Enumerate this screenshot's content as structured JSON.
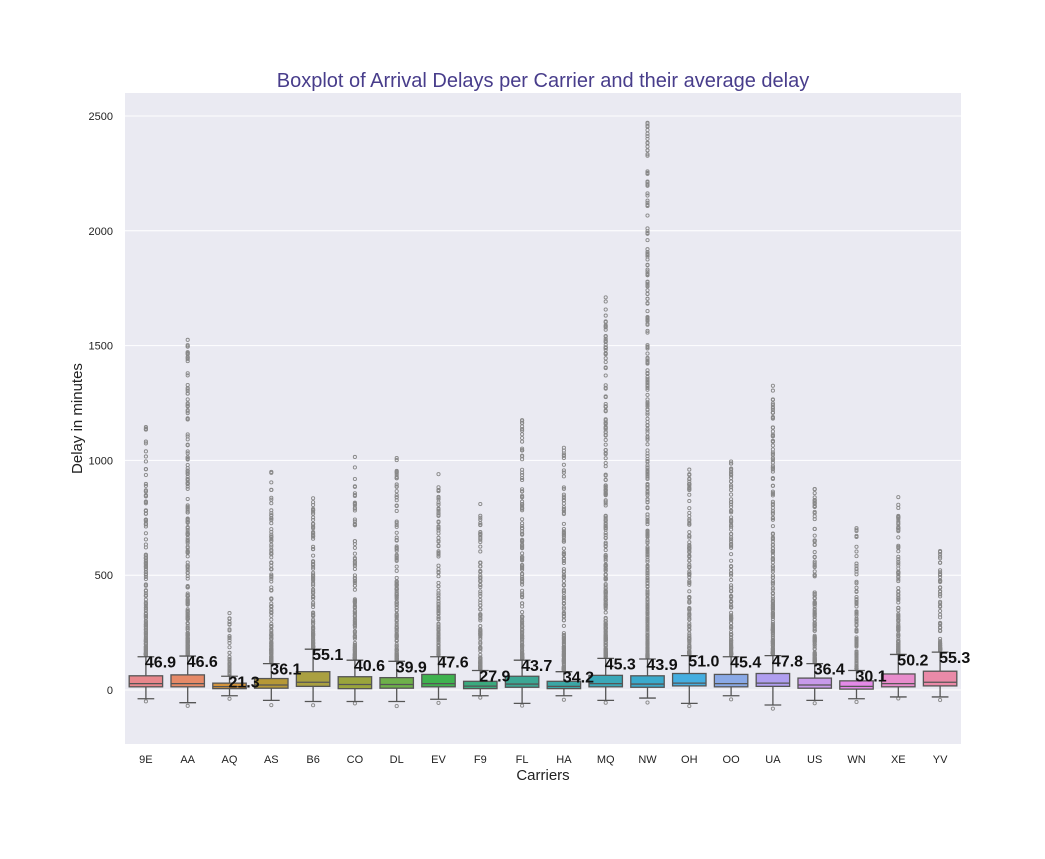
{
  "chart_data": {
    "type": "boxplot",
    "title": "Boxplot of Arrival Delays per Carrier and their average delay",
    "xlabel": "Carriers",
    "ylabel": "Delay in minutes",
    "ylim": [
      -235,
      2600
    ],
    "yticks": [
      0,
      500,
      1000,
      1500,
      2000,
      2500
    ],
    "grid": true,
    "colors": {
      "background": "#eaeaf2",
      "grid": "#ffffff",
      "title": "#483d8b",
      "line": "#555555",
      "outlier": "#888888"
    },
    "categories": [
      "9E",
      "AA",
      "AQ",
      "AS",
      "B6",
      "CO",
      "DL",
      "EV",
      "F9",
      "FL",
      "HA",
      "MQ",
      "NW",
      "OH",
      "OO",
      "UA",
      "US",
      "WN",
      "XE",
      "YV"
    ],
    "box_colors": [
      "#e8878c",
      "#e68a68",
      "#d4943d",
      "#b69836",
      "#aaa040",
      "#9aa43c",
      "#6eb04a",
      "#3fb24f",
      "#3aaa7e",
      "#3ca794",
      "#3aa6a5",
      "#3aa8b8",
      "#3aaacc",
      "#45aee0",
      "#8aa9e6",
      "#b09ef0",
      "#c89aea",
      "#e48ae8",
      "#e88ccc",
      "#ea8aa8"
    ],
    "means": [
      "46.9",
      "46.6",
      "21.3",
      "36.1",
      "55.1",
      "40.6",
      "39.9",
      "47.6",
      "27.9",
      "43.7",
      "34.2",
      "45.3",
      "43.9",
      "51.0",
      "45.4",
      "47.8",
      "36.4",
      "30.1",
      "50.2",
      "55.3"
    ],
    "boxes": [
      {
        "q1": 14,
        "median": 28,
        "q3": 62,
        "whislo": -38,
        "whishi": 145,
        "outlier_top": 1145
      },
      {
        "q1": 14,
        "median": 28,
        "q3": 66,
        "whislo": -55,
        "whishi": 148,
        "outlier_top": 1525
      },
      {
        "q1": 6,
        "median": 15,
        "q3": 30,
        "whislo": -25,
        "whishi": 60,
        "outlier_top": 335
      },
      {
        "q1": 8,
        "median": 22,
        "q3": 50,
        "whislo": -45,
        "whishi": 115,
        "outlier_top": 950
      },
      {
        "q1": 16,
        "median": 34,
        "q3": 80,
        "whislo": -50,
        "whishi": 178,
        "outlier_top": 835
      },
      {
        "q1": 6,
        "median": 24,
        "q3": 58,
        "whislo": -50,
        "whishi": 130,
        "outlier_top": 1015
      },
      {
        "q1": 8,
        "median": 24,
        "q3": 54,
        "whislo": -50,
        "whishi": 125,
        "outlier_top": 1010
      },
      {
        "q1": 14,
        "median": 28,
        "q3": 68,
        "whislo": -40,
        "whishi": 145,
        "outlier_top": 940
      },
      {
        "q1": 6,
        "median": 17,
        "q3": 38,
        "whislo": -25,
        "whishi": 85,
        "outlier_top": 810
      },
      {
        "q1": 12,
        "median": 26,
        "q3": 60,
        "whislo": -58,
        "whishi": 130,
        "outlier_top": 1175
      },
      {
        "q1": 6,
        "median": 16,
        "q3": 38,
        "whislo": -25,
        "whishi": 80,
        "outlier_top": 1055
      },
      {
        "q1": 14,
        "median": 28,
        "q3": 64,
        "whislo": -45,
        "whishi": 138,
        "outlier_top": 1710
      },
      {
        "q1": 12,
        "median": 26,
        "q3": 62,
        "whislo": -35,
        "whishi": 135,
        "outlier_top": 2470
      },
      {
        "q1": 18,
        "median": 30,
        "q3": 72,
        "whislo": -58,
        "whishi": 150,
        "outlier_top": 960
      },
      {
        "q1": 14,
        "median": 28,
        "q3": 68,
        "whislo": -25,
        "whishi": 145,
        "outlier_top": 995
      },
      {
        "q1": 16,
        "median": 30,
        "q3": 72,
        "whislo": -65,
        "whishi": 150,
        "outlier_top": 1325
      },
      {
        "q1": 8,
        "median": 22,
        "q3": 52,
        "whislo": -45,
        "whishi": 115,
        "outlier_top": 875
      },
      {
        "q1": 4,
        "median": 16,
        "q3": 40,
        "whislo": -38,
        "whishi": 85,
        "outlier_top": 705
      },
      {
        "q1": 14,
        "median": 28,
        "q3": 70,
        "whislo": -30,
        "whishi": 155,
        "outlier_top": 840
      },
      {
        "q1": 18,
        "median": 34,
        "q3": 82,
        "whislo": -30,
        "whishi": 165,
        "outlier_top": 605
      }
    ]
  }
}
